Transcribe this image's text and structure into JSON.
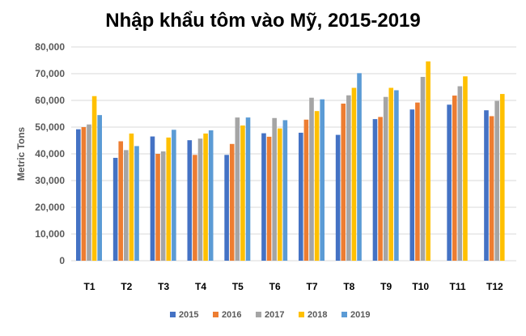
{
  "chart_data": {
    "type": "bar",
    "title": "Nhập khẩu tôm vào Mỹ, 2015-2019",
    "xlabel": "",
    "ylabel": "Metric Tons",
    "ylim": [
      0,
      80000
    ],
    "yticks": [
      "0",
      "10,000",
      "20,000",
      "30,000",
      "40,000",
      "50,000",
      "60,000",
      "70,000",
      "80,000"
    ],
    "grid": true,
    "legend_position": "bottom",
    "categories": [
      "T1",
      "T2",
      "T3",
      "T4",
      "T5",
      "T6",
      "T7",
      "T8",
      "T9",
      "T10",
      "T11",
      "T12"
    ],
    "series": [
      {
        "name": "2015",
        "color": "#4472C4",
        "values": [
          49200,
          38500,
          46500,
          45100,
          39600,
          47700,
          47900,
          47100,
          53000,
          56600,
          58400,
          56300
        ]
      },
      {
        "name": "2016",
        "color": "#ED7D31",
        "values": [
          50000,
          44700,
          40000,
          39600,
          43700,
          46400,
          52800,
          58800,
          53800,
          59200,
          61800,
          54100
        ]
      },
      {
        "name": "2017",
        "color": "#A5A5A5",
        "values": [
          51000,
          41400,
          40900,
          45700,
          53600,
          53400,
          61000,
          61900,
          61300,
          68800,
          65300,
          59800
        ]
      },
      {
        "name": "2018",
        "color": "#FFC000",
        "values": [
          61600,
          47600,
          46100,
          47600,
          50600,
          49500,
          56000,
          64700,
          64700,
          74600,
          69000,
          62400
        ]
      },
      {
        "name": "2019",
        "color": "#5B9BD5",
        "values": [
          54500,
          42900,
          49000,
          48800,
          53600,
          52600,
          60400,
          70200,
          63800,
          null,
          null,
          null
        ]
      }
    ]
  }
}
